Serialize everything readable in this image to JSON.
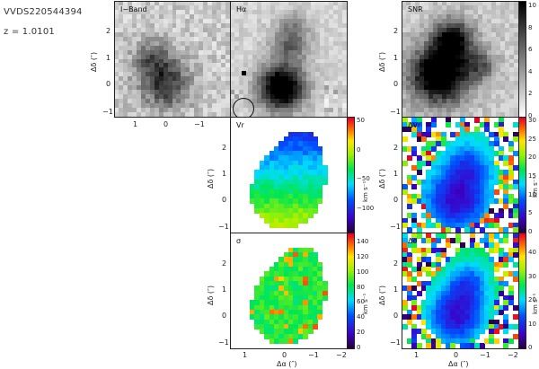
{
  "object": {
    "name": "VVDS220544394",
    "redshift": "z = 1.0101"
  },
  "axes": {
    "x_label": "Δα (″)",
    "y_label": "Δδ (″)",
    "x_ticks_top": [
      "1",
      "0",
      "−1"
    ],
    "x_ticks_bottom": [
      "1",
      "0",
      "−1",
      "−2"
    ],
    "y_ticks_top": [
      "2",
      "1",
      "0",
      "−1"
    ],
    "y_ticks_mid": [
      "2",
      "1",
      "0",
      "−1"
    ]
  },
  "panels": {
    "iband": {
      "label": "I−Band"
    },
    "halpha": {
      "label": "Hα"
    },
    "snr": {
      "label": "SNR",
      "colorbar_ticks": [
        "10",
        "8",
        "6",
        "4",
        "2",
        "0"
      ]
    },
    "vr": {
      "label": "Vr",
      "colorbar_ticks": [
        "50",
        "0",
        "−50",
        "−100"
      ],
      "unit": "km s⁻¹"
    },
    "dvr": {
      "label": "ΔVr",
      "colorbar_ticks": [
        "30",
        "25",
        "20",
        "15",
        "10",
        "5",
        "0"
      ],
      "unit": "km s⁻¹"
    },
    "sigma": {
      "label": "σ",
      "colorbar_ticks": [
        "140",
        "120",
        "100",
        "80",
        "60",
        "40",
        "20",
        "0"
      ],
      "unit": "km s⁻¹"
    },
    "dsigma": {
      "label": "Δσ",
      "colorbar_ticks": [
        "40",
        "30",
        "20",
        "10",
        "0"
      ],
      "unit": "km s⁻¹"
    }
  },
  "colors": {
    "frame": "#222222",
    "background": "#ffffff"
  }
}
